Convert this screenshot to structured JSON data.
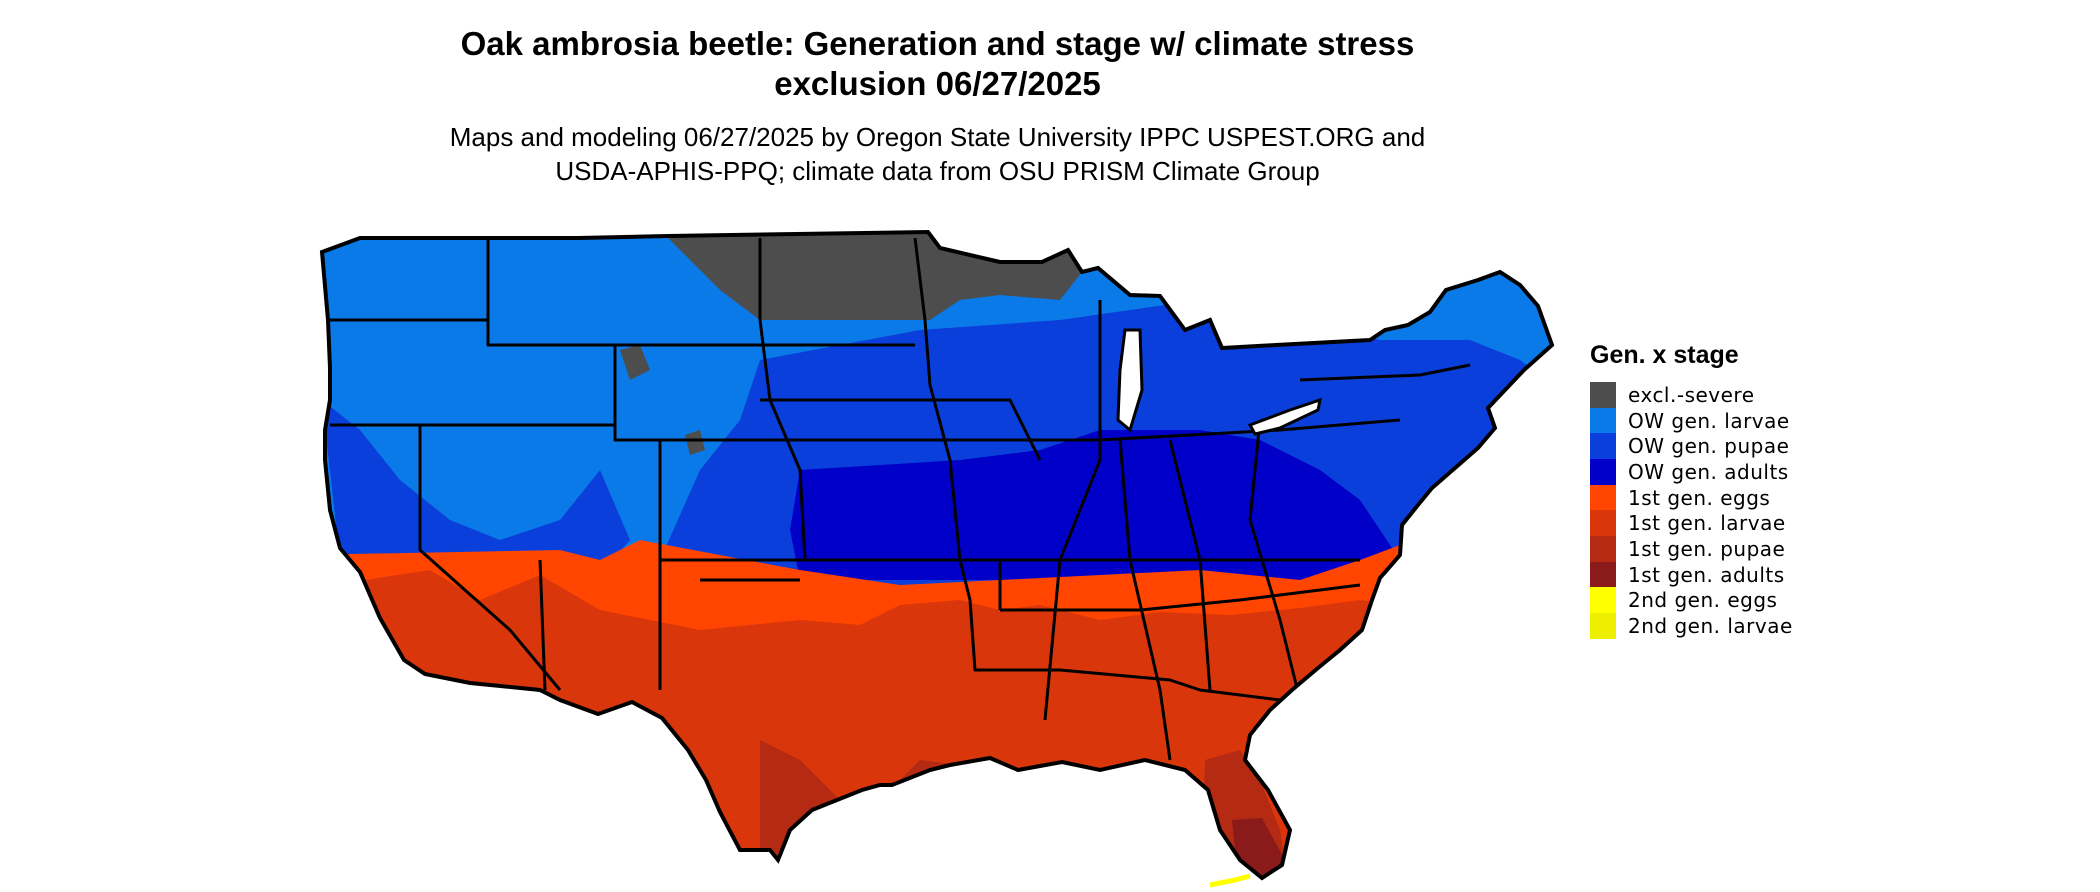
{
  "title_lines": [
    "Oak ambrosia beetle: Generation and stage w/ climate stress",
    "exclusion 06/27/2025"
  ],
  "subtitle_lines": [
    "Maps and modeling 06/27/2025 by Oregon State University IPPC USPEST.ORG and",
    "USDA-APHIS-PPQ; climate data from OSU PRISM Climate Group"
  ],
  "legend": {
    "title": "Gen. x stage",
    "items": [
      {
        "label": "excl.-severe",
        "color": "#4d4d4d"
      },
      {
        "label": "OW gen. larvae",
        "color": "#0a7ae8"
      },
      {
        "label": "OW gen. pupae",
        "color": "#0a3fdb"
      },
      {
        "label": "OW gen. adults",
        "color": "#0000c8"
      },
      {
        "label": "1st gen. eggs",
        "color": "#ff4500"
      },
      {
        "label": "1st gen. larvae",
        "color": "#d9360c"
      },
      {
        "label": "1st gen. pupae",
        "color": "#b52a12"
      },
      {
        "label": "1st gen. adults",
        "color": "#8b1a1a"
      },
      {
        "label": "2nd gen. eggs",
        "color": "#ffff00"
      },
      {
        "label": "2nd gen. larvae",
        "color": "#eeee00"
      }
    ]
  },
  "map": {
    "region": "Contiguous United States",
    "borders": "state boundaries, black",
    "stage_regions": [
      {
        "stage": "excl.-severe",
        "areas": [
          "North Dakota",
          "northern Minnesota",
          "Upper Peninsula of Michigan",
          "northern Wisconsin"
        ]
      },
      {
        "stage": "OW gen. larvae",
        "areas": [
          "Pacific Northwest",
          "northern Rockies",
          "Great Basin",
          "Maine"
        ]
      },
      {
        "stage": "OW gen. pupae",
        "areas": [
          "Northern Plains",
          "Great Lakes",
          "New England"
        ]
      },
      {
        "stage": "OW gen. adults",
        "areas": [
          "Central Plains",
          "Ohio Valley",
          "Mid-Atlantic"
        ]
      },
      {
        "stage": "1st gen. eggs",
        "areas": [
          "Central Valley of California",
          "northern Texas",
          "Carolinas"
        ]
      },
      {
        "stage": "1st gen. larvae",
        "areas": [
          "Desert Southwest",
          "Texas",
          "Gulf Coast states",
          "Georgia"
        ]
      },
      {
        "stage": "1st gen. pupae",
        "areas": [
          "South Texas",
          "Florida"
        ]
      },
      {
        "stage": "1st gen. adults",
        "areas": [
          "southern tip of Texas",
          "southern Florida"
        ]
      },
      {
        "stage": "2nd gen. eggs",
        "areas": [
          "Florida Keys"
        ]
      }
    ]
  }
}
